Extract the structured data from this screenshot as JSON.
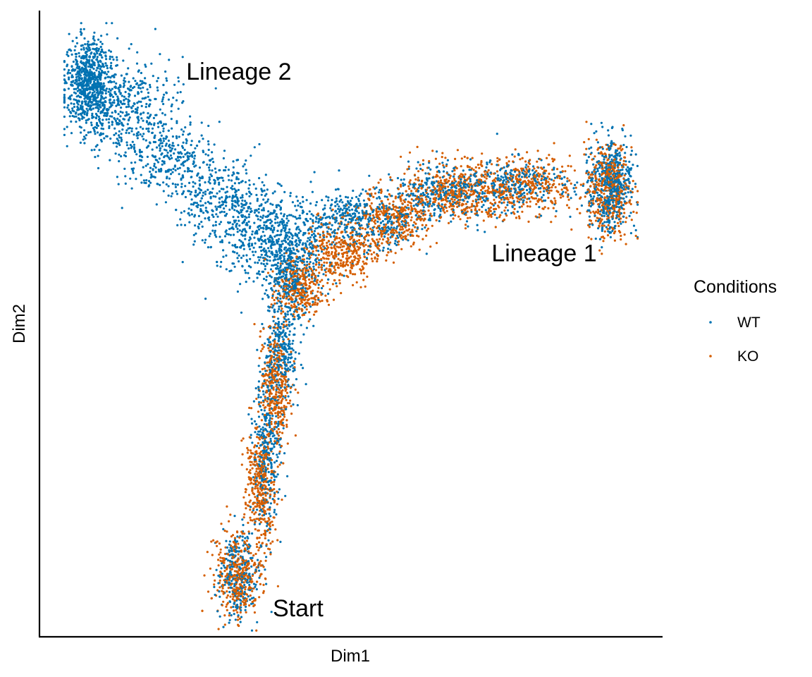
{
  "chart_data": {
    "type": "scatter",
    "title": "",
    "xlabel": "Dim1",
    "ylabel": "Dim2",
    "xlim": [
      0,
      100
    ],
    "ylim": [
      0,
      100
    ],
    "grid": false,
    "legend": {
      "title": "Conditions",
      "placement": "right",
      "entries": [
        {
          "label": "WT",
          "color": "#0072B2"
        },
        {
          "label": "KO",
          "color": "#D55E00"
        }
      ]
    },
    "annotations": [
      {
        "text": "Lineage 2",
        "x": 32,
        "y": 90
      },
      {
        "text": "Lineage 1",
        "x": 81,
        "y": 61
      },
      {
        "text": "Start",
        "x": 41.5,
        "y": 4.3
      }
    ],
    "series": [
      {
        "name": "WT",
        "color": "#0072B2",
        "point_groups": [
          {
            "cx": 8.0,
            "cy": 89.0,
            "sx": 1.8,
            "sy": 3.2,
            "n": 700
          },
          {
            "cx": 13.0,
            "cy": 84.5,
            "sx": 4.0,
            "sy": 3.8,
            "n": 500
          },
          {
            "cx": 20.5,
            "cy": 77.0,
            "sx": 3.8,
            "sy": 3.0,
            "n": 300
          },
          {
            "cx": 29.0,
            "cy": 70.0,
            "sx": 4.0,
            "sy": 3.3,
            "n": 320
          },
          {
            "cx": 38.0,
            "cy": 64.0,
            "sx": 5.0,
            "sy": 3.6,
            "n": 650
          },
          {
            "cx": 49.0,
            "cy": 67.0,
            "sx": 2.8,
            "sy": 2.0,
            "n": 180
          },
          {
            "cx": 40.5,
            "cy": 57.5,
            "sx": 1.9,
            "sy": 3.0,
            "n": 320
          },
          {
            "cx": 39.0,
            "cy": 46.0,
            "sx": 1.3,
            "sy": 4.5,
            "n": 300
          },
          {
            "cx": 36.5,
            "cy": 30.0,
            "sx": 1.1,
            "sy": 6.5,
            "n": 320
          },
          {
            "cx": 32.0,
            "cy": 10.5,
            "sx": 1.9,
            "sy": 3.6,
            "n": 260
          },
          {
            "cx": 55.0,
            "cy": 66.0,
            "sx": 3.0,
            "sy": 2.4,
            "n": 200
          },
          {
            "cx": 64.0,
            "cy": 70.5,
            "sx": 3.5,
            "sy": 2.3,
            "n": 280
          },
          {
            "cx": 76.0,
            "cy": 72.0,
            "sx": 4.5,
            "sy": 2.2,
            "n": 320
          },
          {
            "cx": 91.5,
            "cy": 72.0,
            "sx": 1.8,
            "sy": 3.6,
            "n": 520
          }
        ]
      },
      {
        "name": "KO",
        "color": "#D55E00",
        "point_groups": [
          {
            "cx": 32.0,
            "cy": 10.0,
            "sx": 1.9,
            "sy": 3.4,
            "n": 380
          },
          {
            "cx": 35.5,
            "cy": 24.0,
            "sx": 1.2,
            "sy": 5.0,
            "n": 380
          },
          {
            "cx": 38.0,
            "cy": 40.0,
            "sx": 1.2,
            "sy": 5.0,
            "n": 360
          },
          {
            "cx": 42.0,
            "cy": 55.5,
            "sx": 2.0,
            "sy": 2.4,
            "n": 300
          },
          {
            "cx": 49.0,
            "cy": 61.5,
            "sx": 3.0,
            "sy": 2.5,
            "n": 380
          },
          {
            "cx": 57.0,
            "cy": 67.0,
            "sx": 3.0,
            "sy": 2.4,
            "n": 340
          },
          {
            "cx": 66.0,
            "cy": 71.0,
            "sx": 4.0,
            "sy": 2.3,
            "n": 420
          },
          {
            "cx": 78.0,
            "cy": 72.0,
            "sx": 4.5,
            "sy": 2.3,
            "n": 420
          },
          {
            "cx": 91.5,
            "cy": 71.5,
            "sx": 1.8,
            "sy": 3.8,
            "n": 440
          }
        ]
      }
    ]
  }
}
